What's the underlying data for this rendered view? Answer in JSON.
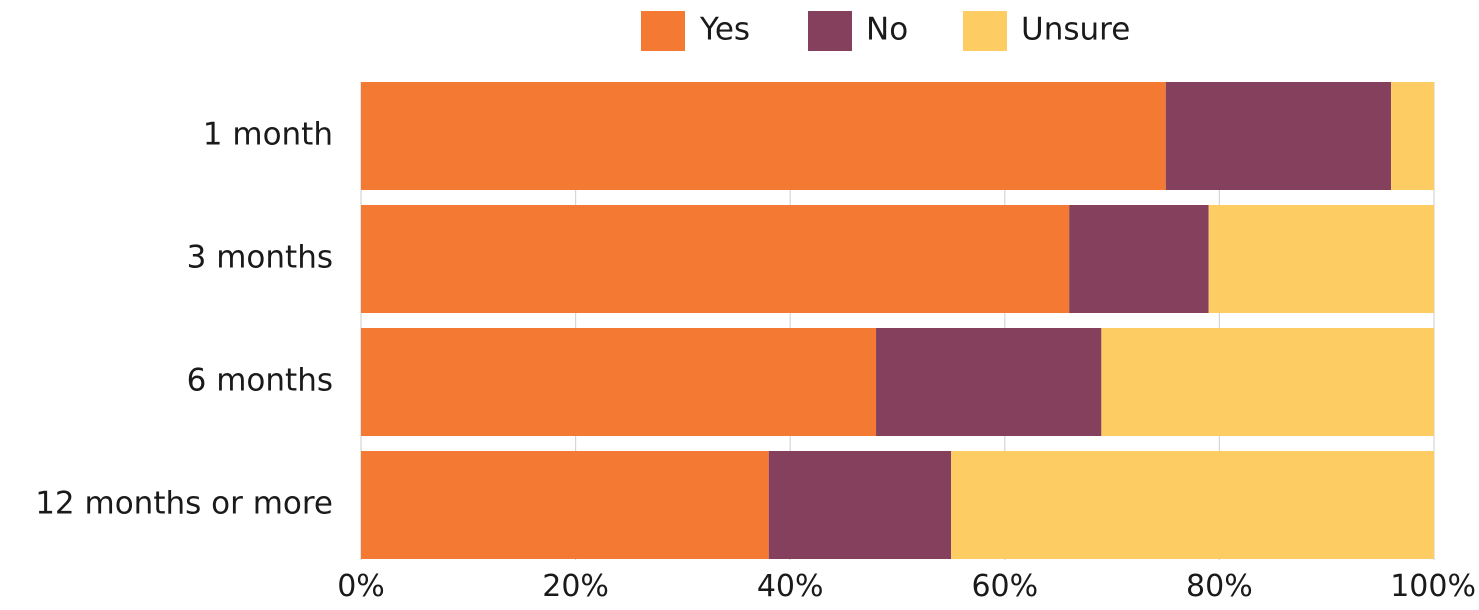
{
  "chart_data": {
    "type": "bar",
    "orientation": "horizontal",
    "stacked": true,
    "categories": [
      "1 month",
      "3 months",
      "6 months",
      "12 months or more"
    ],
    "series": [
      {
        "name": "Yes",
        "color": "#F47A33",
        "values": [
          75,
          66,
          48,
          38
        ]
      },
      {
        "name": "No",
        "color": "#84405C",
        "values": [
          21,
          13,
          21,
          17
        ]
      },
      {
        "name": "Unsure",
        "color": "#FDCD63",
        "values": [
          4,
          21,
          31,
          45
        ]
      }
    ],
    "xticks": [
      "0%",
      "20%",
      "40%",
      "60%",
      "80%",
      "100%"
    ],
    "xlim": [
      0,
      100
    ],
    "grid": true,
    "legend_position": "top"
  }
}
